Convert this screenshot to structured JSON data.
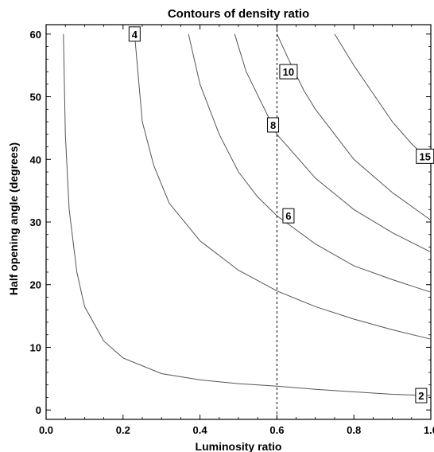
{
  "chart_data": {
    "type": "line",
    "title": "Contours of density ratio",
    "xlabel": "Luminosity ratio",
    "ylabel": "Half opening angle (degrees)",
    "xlim": [
      0,
      1
    ],
    "ylim": [
      -1.5,
      61.5
    ],
    "x_ticks": [
      "0.0",
      "0.2",
      "0.4",
      "0.6",
      "0.8",
      "1.0"
    ],
    "x_tick_values": [
      0,
      0.2,
      0.4,
      0.6,
      0.8,
      1.0
    ],
    "y_ticks": [
      "0",
      "10",
      "20",
      "30",
      "40",
      "50",
      "60"
    ],
    "y_tick_values": [
      0,
      10,
      20,
      30,
      40,
      50,
      60
    ],
    "grid": false,
    "vertical_reference_line": {
      "x": 0.6,
      "style": "dashed"
    },
    "series": [
      {
        "label": "2",
        "points": [
          [
            0.045,
            60
          ],
          [
            0.05,
            44
          ],
          [
            0.06,
            32
          ],
          [
            0.08,
            22
          ],
          [
            0.1,
            16.5
          ],
          [
            0.15,
            11
          ],
          [
            0.2,
            8.3
          ],
          [
            0.3,
            5.8
          ],
          [
            0.4,
            4.8
          ],
          [
            0.5,
            4.2
          ],
          [
            0.6,
            3.8
          ],
          [
            0.7,
            3.3
          ],
          [
            0.8,
            2.9
          ],
          [
            0.9,
            2.5
          ],
          [
            1.0,
            2.3
          ]
        ]
      },
      {
        "label": "4",
        "points": [
          [
            0.23,
            60
          ],
          [
            0.25,
            46
          ],
          [
            0.28,
            39
          ],
          [
            0.32,
            33
          ],
          [
            0.4,
            27
          ],
          [
            0.5,
            22.3
          ],
          [
            0.6,
            19
          ],
          [
            0.7,
            16.5
          ],
          [
            0.8,
            14.5
          ],
          [
            0.9,
            12.8
          ],
          [
            1.0,
            11.3
          ]
        ]
      },
      {
        "label": "6",
        "points": [
          [
            0.37,
            60
          ],
          [
            0.4,
            52
          ],
          [
            0.45,
            44
          ],
          [
            0.5,
            38
          ],
          [
            0.55,
            34
          ],
          [
            0.6,
            31
          ],
          [
            0.7,
            26.5
          ],
          [
            0.8,
            23
          ],
          [
            0.9,
            20.8
          ],
          [
            1.0,
            18.8
          ]
        ]
      },
      {
        "label": "8",
        "points": [
          [
            0.49,
            60
          ],
          [
            0.52,
            54
          ],
          [
            0.56,
            49
          ],
          [
            0.6,
            44
          ],
          [
            0.7,
            37
          ],
          [
            0.8,
            32
          ],
          [
            0.9,
            28.3
          ],
          [
            1.0,
            25.2
          ]
        ]
      },
      {
        "label": "10",
        "points": [
          [
            0.6,
            60
          ],
          [
            0.63,
            56
          ],
          [
            0.67,
            51
          ],
          [
            0.7,
            48
          ],
          [
            0.8,
            40
          ],
          [
            0.9,
            34.7
          ],
          [
            1.0,
            30.3
          ]
        ]
      },
      {
        "label": "15",
        "points": [
          [
            0.75,
            60
          ],
          [
            0.8,
            55
          ],
          [
            0.85,
            50.5
          ],
          [
            0.9,
            46
          ],
          [
            0.95,
            42.5
          ],
          [
            1.0,
            39.5
          ]
        ]
      }
    ],
    "contour_labels": [
      {
        "text": "4",
        "x": 0.23,
        "y": 60
      },
      {
        "text": "10",
        "x": 0.63,
        "y": 54
      },
      {
        "text": "8",
        "x": 0.59,
        "y": 45.5
      },
      {
        "text": "15",
        "x": 0.985,
        "y": 40.5
      },
      {
        "text": "6",
        "x": 0.63,
        "y": 31
      },
      {
        "text": "2",
        "x": 0.975,
        "y": 2.3
      }
    ]
  }
}
